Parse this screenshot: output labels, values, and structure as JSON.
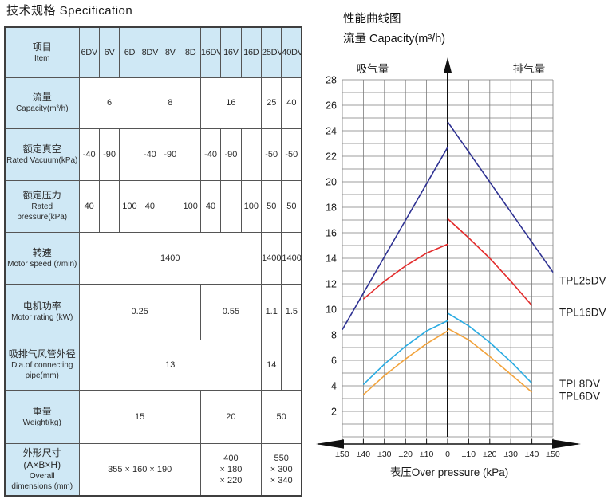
{
  "spec": {
    "title": "技术规格 Specification",
    "header": {
      "item_zh": "项目",
      "item_en": "Item",
      "models": [
        "6DV",
        "6V",
        "6D",
        "8DV",
        "8V",
        "8D",
        "16DV",
        "16V",
        "16D",
        "25DV",
        "40DV"
      ]
    },
    "rows": [
      {
        "label_lines": [
          "流量",
          "Capacity(m³/h)"
        ],
        "cells": [
          {
            "t": "6",
            "s": 3
          },
          {
            "t": "8",
            "s": 3
          },
          {
            "t": "16",
            "s": 3
          },
          {
            "t": "25",
            "s": 1
          },
          {
            "t": "40",
            "s": 1
          }
        ]
      },
      {
        "label_lines": [
          "额定真空",
          "Rated Vacuum(kPa)"
        ],
        "cells": [
          {
            "t": "-40",
            "s": 1
          },
          {
            "t": "-90",
            "s": 1
          },
          {
            "t": "",
            "s": 1
          },
          {
            "t": "-40",
            "s": 1
          },
          {
            "t": "-90",
            "s": 1
          },
          {
            "t": "",
            "s": 1
          },
          {
            "t": "-40",
            "s": 1
          },
          {
            "t": "-90",
            "s": 1
          },
          {
            "t": "",
            "s": 1
          },
          {
            "t": "-50",
            "s": 1
          },
          {
            "t": "-50",
            "s": 1
          }
        ]
      },
      {
        "label_lines": [
          "额定压力",
          "Rated pressure(kPa)"
        ],
        "cells": [
          {
            "t": "40",
            "s": 1
          },
          {
            "t": "",
            "s": 1
          },
          {
            "t": "100",
            "s": 1
          },
          {
            "t": "40",
            "s": 1
          },
          {
            "t": "",
            "s": 1
          },
          {
            "t": "100",
            "s": 1
          },
          {
            "t": "40",
            "s": 1
          },
          {
            "t": "",
            "s": 1
          },
          {
            "t": "100",
            "s": 1
          },
          {
            "t": "50",
            "s": 1
          },
          {
            "t": "50",
            "s": 1
          }
        ]
      },
      {
        "label_lines": [
          "转速",
          "Motor speed (r/min)"
        ],
        "cells": [
          {
            "t": "1400",
            "s": 9
          },
          {
            "t": "1400",
            "s": 1
          },
          {
            "t": "1400",
            "s": 1
          }
        ]
      },
      {
        "label_lines": [
          "电机功率",
          "Motor rating (kW)"
        ],
        "cells": [
          {
            "t": "0.25",
            "s": 6
          },
          {
            "t": "0.55",
            "s": 3
          },
          {
            "t": "1.1",
            "s": 1
          },
          {
            "t": "1.5",
            "s": 1
          }
        ]
      },
      {
        "label_lines": [
          "吸排气风管外径",
          "Dia.of connecting",
          "pipe(mm)"
        ],
        "cells": [
          {
            "t": "13",
            "s": 9
          },
          {
            "t": "14",
            "s": 1
          },
          {
            "t": "",
            "s": 1
          }
        ]
      },
      {
        "label_lines": [
          "重量",
          "Weight(kg)"
        ],
        "cells": [
          {
            "t": "15",
            "s": 6
          },
          {
            "t": "20",
            "s": 3
          },
          {
            "t": "50",
            "s": 2
          }
        ]
      },
      {
        "label_lines": [
          "外形尺寸(A×B×H)",
          "Overall",
          "dimensions (mm)"
        ],
        "cells": [
          {
            "lines": [
              "355 × 160 × 190"
            ],
            "s": 6
          },
          {
            "lines": [
              "400",
              "× 180",
              "× 220"
            ],
            "s": 3
          },
          {
            "lines": [
              "550",
              "× 300",
              "× 340"
            ],
            "s": 2
          }
        ]
      }
    ]
  },
  "chart_data": {
    "type": "line",
    "title": "性能曲线图",
    "subtitle": "流量 Capacity(m³/h)",
    "xlabel": "表压Over pressure (kPa)",
    "suction_label": "吸气量",
    "discharge_label": "排气量",
    "xlim": [
      -50,
      50
    ],
    "ylim": [
      0,
      28
    ],
    "grid": true,
    "legend_position": "right-of-plot",
    "x_tick_values": [
      -50,
      -40,
      -30,
      -20,
      -10,
      0,
      10,
      20,
      30,
      40,
      50
    ],
    "x_tick_labels": [
      "±50",
      "±40",
      "±30",
      "±20",
      "±10",
      "0",
      "±10",
      "±20",
      "±30",
      "±40",
      "±50"
    ],
    "y_tick_values": [
      2,
      4,
      6,
      8,
      10,
      12,
      14,
      16,
      18,
      20,
      22,
      24,
      26,
      28
    ],
    "series": [
      {
        "name": "TPL25DV",
        "color": "#2e3192",
        "label_y": 12.25,
        "suction": [
          [
            -50,
            8.4
          ],
          [
            0,
            22.7
          ]
        ],
        "discharge": [
          [
            0,
            24.7
          ],
          [
            50,
            12.9
          ]
        ]
      },
      {
        "name": "TPL16DV",
        "color": "#e32b2b",
        "label_y": 9.75,
        "suction": [
          [
            -40,
            10.8
          ],
          [
            -30,
            12.2
          ],
          [
            -20,
            13.4
          ],
          [
            -10,
            14.4
          ],
          [
            0,
            15.1
          ]
        ],
        "discharge": [
          [
            0,
            17.1
          ],
          [
            10,
            15.6
          ],
          [
            20,
            14.0
          ],
          [
            30,
            12.2
          ],
          [
            40,
            10.3
          ]
        ]
      },
      {
        "name": "TPL8DV",
        "color": "#29abe2",
        "label_y": 4.15,
        "suction": [
          [
            -40,
            4.1
          ],
          [
            -30,
            5.7
          ],
          [
            -20,
            7.1
          ],
          [
            -10,
            8.3
          ],
          [
            0,
            9.1
          ]
        ],
        "discharge": [
          [
            0,
            9.7
          ],
          [
            10,
            8.7
          ],
          [
            20,
            7.4
          ],
          [
            30,
            5.9
          ],
          [
            40,
            4.2
          ]
        ]
      },
      {
        "name": "TPL6DV",
        "color": "#f2a33c",
        "label_y": 3.2,
        "suction": [
          [
            -40,
            3.3
          ],
          [
            -30,
            4.8
          ],
          [
            -20,
            6.1
          ],
          [
            -10,
            7.3
          ],
          [
            0,
            8.3
          ]
        ],
        "discharge": [
          [
            0,
            8.5
          ],
          [
            10,
            7.6
          ],
          [
            20,
            6.3
          ],
          [
            30,
            4.9
          ],
          [
            40,
            3.5
          ]
        ]
      }
    ]
  }
}
